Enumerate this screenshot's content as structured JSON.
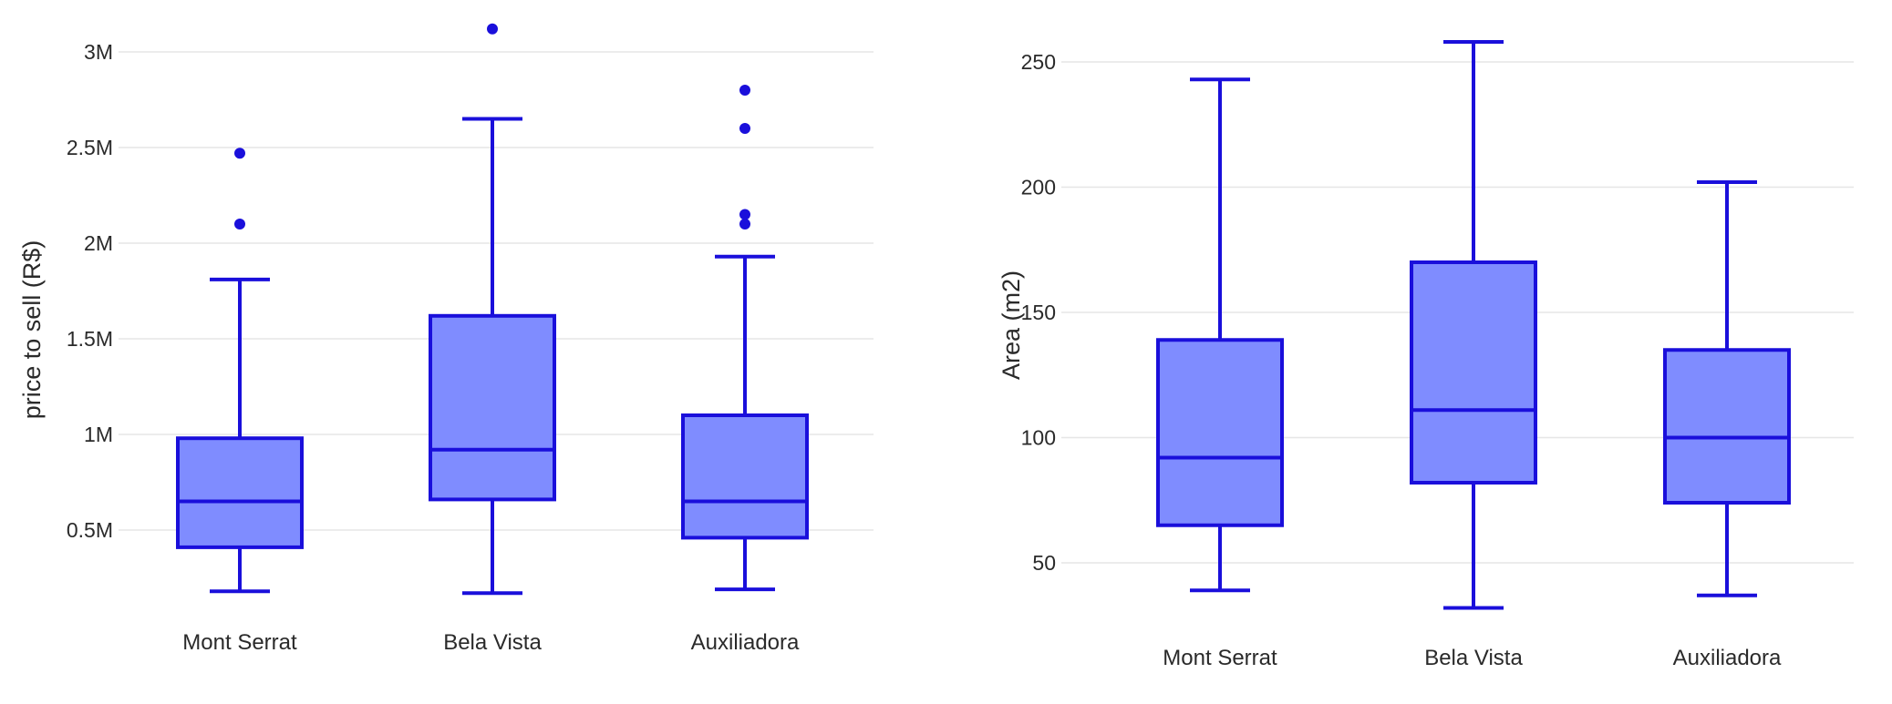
{
  "colors": {
    "stroke": "#1a0fdb",
    "fill": "#7f8cff",
    "grid": "#e6e6e6",
    "outlier": "#1a0fdb"
  },
  "chart_data": [
    {
      "type": "box",
      "xlabel": "",
      "ylabel": "price to sell (R$)",
      "ylim": [
        0,
        3000000
      ],
      "yticks": [
        {
          "value": 500000,
          "label": "0.5M"
        },
        {
          "value": 1000000,
          "label": "1M"
        },
        {
          "value": 1500000,
          "label": "1.5M"
        },
        {
          "value": 2000000,
          "label": "2M"
        },
        {
          "value": 2500000,
          "label": "2.5M"
        },
        {
          "value": 3000000,
          "label": "3M"
        }
      ],
      "categories": [
        "Mont Serrat",
        "Bela Vista",
        "Auxiliadora"
      ],
      "boxes": [
        {
          "name": "Mont Serrat",
          "lower_whisker": 180000,
          "q1": 410000,
          "median": 650000,
          "q3": 980000,
          "upper_whisker": 1810000,
          "outliers": [
            2100000,
            2470000
          ]
        },
        {
          "name": "Bela Vista",
          "lower_whisker": 170000,
          "q1": 660000,
          "median": 920000,
          "q3": 1620000,
          "upper_whisker": 2650000,
          "outliers": [
            3120000
          ]
        },
        {
          "name": "Auxiliadora",
          "lower_whisker": 190000,
          "q1": 460000,
          "median": 650000,
          "q3": 1100000,
          "upper_whisker": 1930000,
          "outliers": [
            2100000,
            2150000,
            2600000,
            2800000
          ]
        }
      ],
      "grid": true
    },
    {
      "type": "box",
      "xlabel": "",
      "ylabel": "Area (m2)",
      "ylim": [
        30,
        260
      ],
      "yticks": [
        {
          "value": 50,
          "label": "50"
        },
        {
          "value": 100,
          "label": "100"
        },
        {
          "value": 150,
          "label": "150"
        },
        {
          "value": 200,
          "label": "200"
        },
        {
          "value": 250,
          "label": "250"
        }
      ],
      "categories": [
        "Mont Serrat",
        "Bela Vista",
        "Auxiliadora"
      ],
      "boxes": [
        {
          "name": "Mont Serrat",
          "lower_whisker": 39,
          "q1": 65,
          "median": 92,
          "q3": 139,
          "upper_whisker": 243,
          "outliers": []
        },
        {
          "name": "Bela Vista",
          "lower_whisker": 32,
          "q1": 82,
          "median": 111,
          "q3": 170,
          "upper_whisker": 258,
          "outliers": []
        },
        {
          "name": "Auxiliadora",
          "lower_whisker": 37,
          "q1": 74,
          "median": 100,
          "q3": 135,
          "upper_whisker": 202,
          "outliers": []
        }
      ],
      "grid": true
    }
  ]
}
